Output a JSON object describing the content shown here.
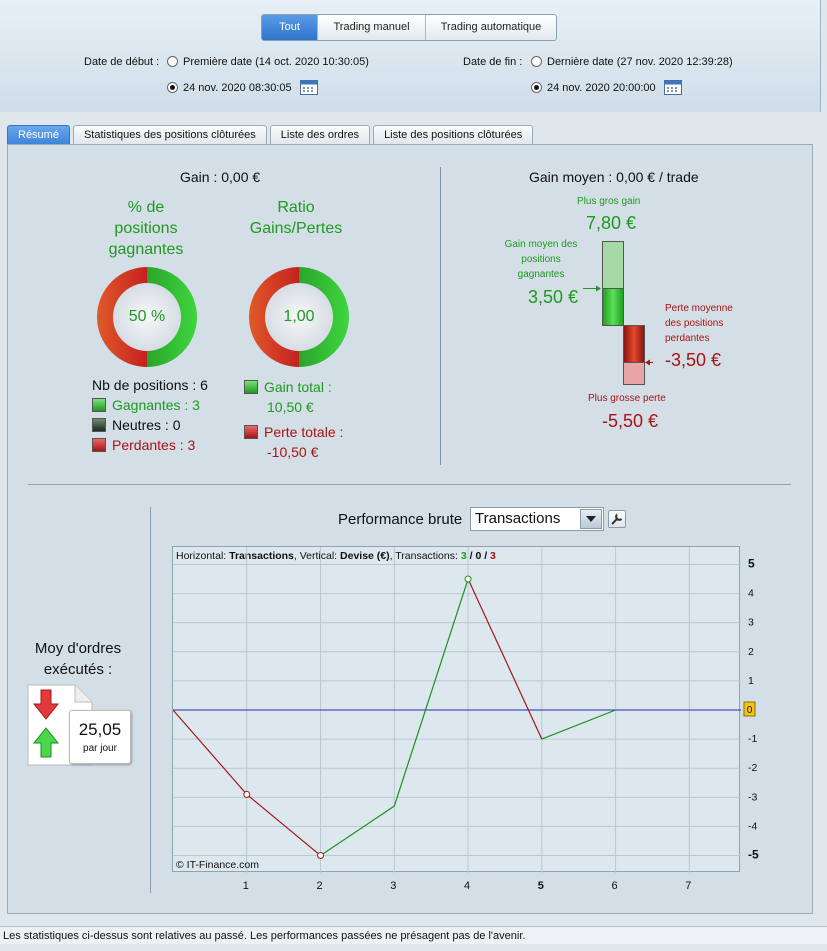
{
  "filter_tabs": [
    "Tout",
    "Trading manuel",
    "Trading automatique"
  ],
  "start": {
    "label": "Date de début :",
    "option_first": "Première date (14 oct. 2020 10:30:05)",
    "option_custom": "24 nov. 2020 08:30:05"
  },
  "end": {
    "label": "Date de fin :",
    "option_last": "Dernière date (27 nov. 2020 12:39:28)",
    "option_custom": "24 nov. 2020 20:00:00"
  },
  "tabs": [
    "Résumé",
    "Statistiques des positions clôturées",
    "Liste des ordres",
    "Liste des positions clôturées"
  ],
  "summary": {
    "gain": "Gain : 0,00 €",
    "pct_title": [
      "% de",
      "positions",
      "gagnantes"
    ],
    "pct_value": "50 %",
    "ratio_title": [
      "Ratio",
      "Gains/Pertes"
    ],
    "ratio_value": "1,00",
    "nb_positions": "Nb de positions : 6",
    "winning": "Gagnantes : 3",
    "neutral": "Neutres : 0",
    "losing": "Perdantes : 3",
    "total_gain_label": "Gain total :",
    "total_gain_value": "10,50 €",
    "total_loss_label": "Perte totale :",
    "total_loss_value": "-10,50 €"
  },
  "average": {
    "title": "Gain moyen : 0,00 € / trade",
    "max_gain_label": "Plus gros gain",
    "max_gain_value": "7,80 €",
    "avg_gain_label": [
      "Gain moyen des",
      "positions",
      "gagnantes"
    ],
    "avg_gain_value": "3,50 €",
    "avg_loss_label": [
      "Perte moyenne",
      "des positions",
      "perdantes"
    ],
    "avg_loss_value": "-3,50 €",
    "max_loss_label": "Plus grosse perte",
    "max_loss_value": "-5,50 €"
  },
  "orders": {
    "title": [
      "Moy d'ordres",
      "exécutés :"
    ],
    "value": "25,05",
    "unit": "par jour"
  },
  "performance": {
    "title": "Performance brute",
    "select_value": "Transactions"
  },
  "chart_data": {
    "type": "line",
    "header": {
      "h_label": "Horizontal:",
      "h_value": "Transactions",
      "v_label": ", Vertical:",
      "v_value": "Devise (€)",
      "t_label": ", Transactions:",
      "t_win": "3",
      "t_sep1": " / ",
      "t_neutral": "0",
      "t_sep2": " / ",
      "t_loss": "3"
    },
    "watermark": "© IT-Finance.com",
    "x": [
      0,
      1,
      2,
      3,
      4,
      5,
      6
    ],
    "y": [
      0,
      -2.9,
      -5.0,
      -3.3,
      4.5,
      -1.0,
      0
    ],
    "segment_colors": [
      "#a01818",
      "#a01818",
      "#1f8f1f",
      "#1f8f1f",
      "#a01818",
      "#1f8f1f"
    ],
    "markers": [
      1,
      2,
      4
    ],
    "xlim": [
      0,
      7.7
    ],
    "ylim": [
      -5.6,
      5.6
    ],
    "x_ticks": [
      "1",
      "2",
      "3",
      "4",
      "5",
      "6",
      "7"
    ],
    "y_ticks": [
      "5",
      "4",
      "3",
      "2",
      "1",
      "0",
      "-1",
      "-2",
      "-3",
      "-4",
      "-5"
    ],
    "current_value": "0",
    "colors": {
      "zero_line": "#2b2bb0",
      "grid": "#b9c8d3"
    }
  },
  "status": "Les statistiques ci-dessus sont relatives au passé. Les performances passées ne présagent pas de l'avenir.",
  "colors": {
    "green": "#1e9a1e",
    "red": "#a81414",
    "accent": "#3b82d8"
  }
}
